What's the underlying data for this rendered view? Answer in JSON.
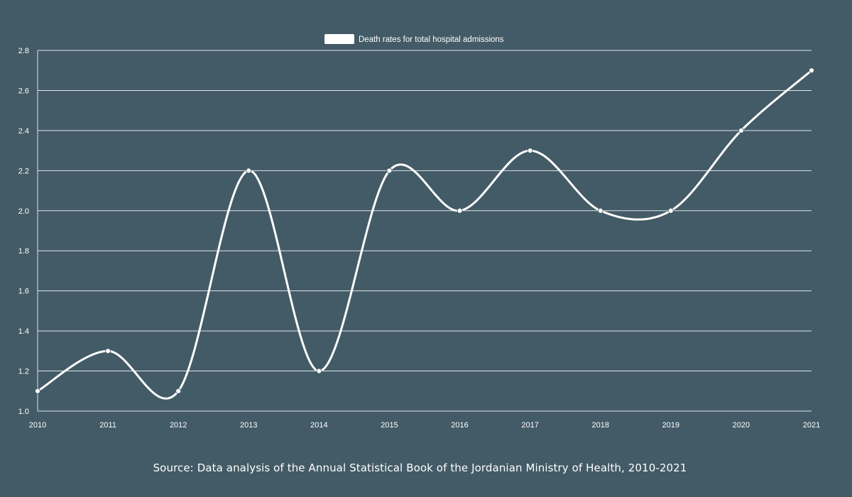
{
  "chart_data": {
    "type": "line",
    "title": "",
    "xlabel": "",
    "ylabel": "",
    "categories": [
      "2010",
      "2011",
      "2012",
      "2013",
      "2014",
      "2015",
      "2016",
      "2017",
      "2018",
      "2019",
      "2020",
      "2021"
    ],
    "series": [
      {
        "name": "Death rates for total hospital admissions",
        "values": [
          1.1,
          1.3,
          1.1,
          2.2,
          1.2,
          2.2,
          2.0,
          2.3,
          2.0,
          2.0,
          2.4,
          2.7
        ]
      }
    ],
    "ylim": [
      1.0,
      2.8
    ],
    "yticks": [
      "1.0",
      "1.2",
      "1.4",
      "1.6",
      "1.8",
      "2.0",
      "2.2",
      "2.4",
      "2.6",
      "2.8"
    ],
    "grid": true,
    "legend_position": "top-center",
    "line_color": "#ffffff",
    "background_color": "#435b66",
    "grid_color": "#dfe6e9"
  },
  "source_note": "Source: Data analysis of the Annual Statistical Book of the Jordanian Ministry of Health, 2010-2021"
}
